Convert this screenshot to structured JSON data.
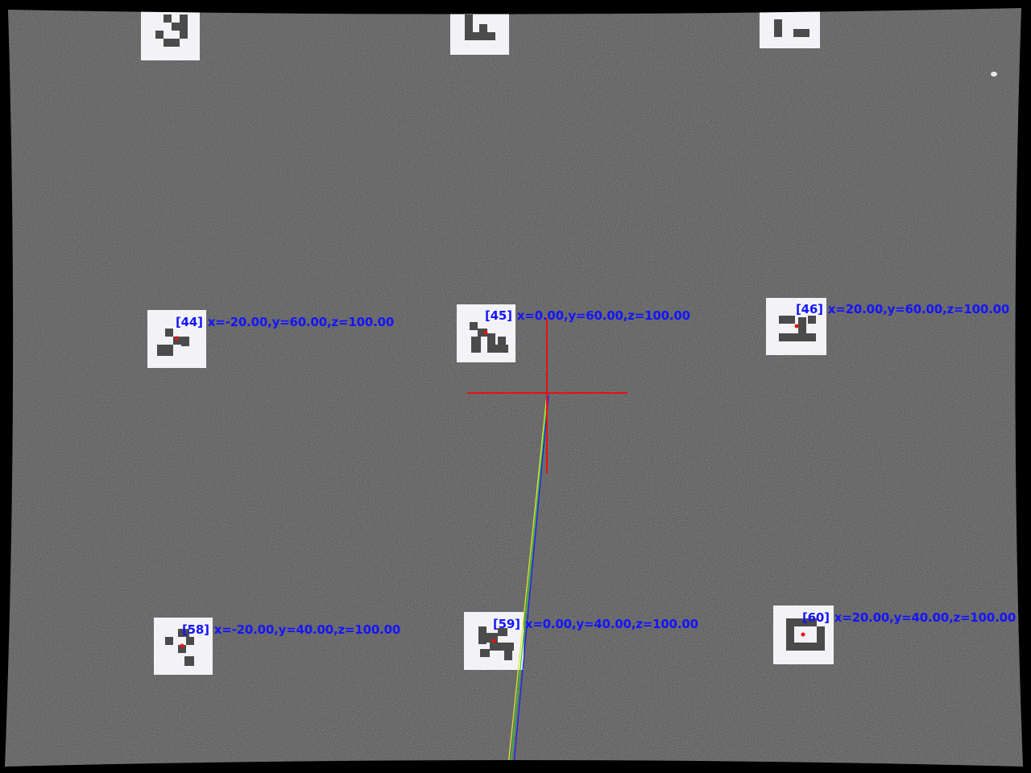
{
  "colors": {
    "surface": "#4d4d4d",
    "marker_white": "#f3f3f7",
    "marker_dark": "#4b4b4b",
    "label": "#1414ff",
    "crosshair": "#e81010",
    "ray_blue": "#1a1aff",
    "ray_green": "#2bd12b",
    "ray_red": "#e82020"
  },
  "icons": {
    "crosshair": "crosshair-icon",
    "marker_center": "marker-center-dot-icon"
  },
  "markers": [
    {
      "id": "[44]",
      "coords": "x=-20.00,y=60.00,z=100.00"
    },
    {
      "id": "[45]",
      "coords": "x=0.00,y=60.00,z=100.00"
    },
    {
      "id": "[46]",
      "coords": "x=20.00,y=60.00,z=100.00"
    },
    {
      "id": "[58]",
      "coords": "x=-20.00,y=40.00,z=100.00"
    },
    {
      "id": "[59]",
      "coords": "x=0.00,y=40.00,z=100.00"
    },
    {
      "id": "[60]",
      "coords": "x=20.00,y=40.00,z=100.00"
    }
  ]
}
